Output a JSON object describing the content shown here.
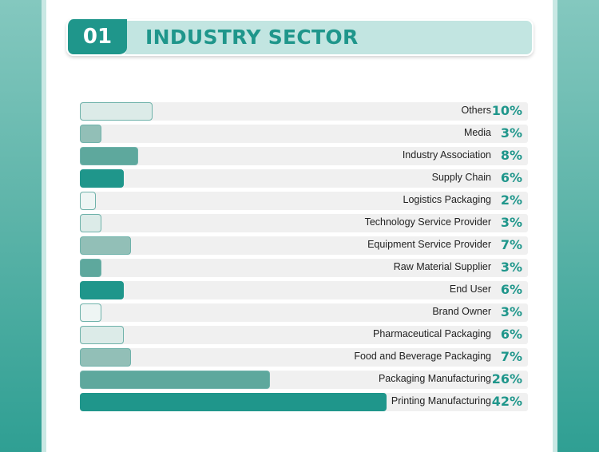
{
  "header": {
    "number": "01",
    "title": "INDUSTRY SECTOR"
  },
  "colors": {
    "accent": "#1f968b",
    "header_bg": "#c2e5e1",
    "track": "#f0f0f0",
    "palette": [
      "#dcebe8",
      "#92bfb7",
      "#5ea89d",
      "#1f968b",
      "#eef5f4"
    ]
  },
  "chart_data": {
    "type": "bar",
    "orientation": "horizontal",
    "title": "INDUSTRY SECTOR",
    "xlabel": "",
    "ylabel": "",
    "unit": "%",
    "xlim": [
      0,
      50
    ],
    "grid": false,
    "categories": [
      "Others",
      "Media",
      "Industry Association",
      "Supply Chain",
      "Logistics Packaging",
      "Technology Service Provider",
      "Equipment Service Provider",
      "Raw Material Supplier",
      "End User",
      "Brand Owner",
      "Pharmaceutical Packaging",
      "Food and Beverage Packaging",
      "Packaging Manufacturing",
      "Printing Manufacturing"
    ],
    "values": [
      10,
      3,
      8,
      6,
      2,
      3,
      7,
      3,
      6,
      3,
      6,
      7,
      26,
      42
    ],
    "labels": [
      "10%",
      "3%",
      "8%",
      "6%",
      "2%",
      "3%",
      "7%",
      "3%",
      "6%",
      "3%",
      "6%",
      "7%",
      "26%",
      "42%"
    ],
    "bar_colors": [
      "#dcebe8",
      "#92bfb7",
      "#5ea89d",
      "#1f968b",
      "#eef5f4",
      "#dcebe8",
      "#92bfb7",
      "#5ea89d",
      "#1f968b",
      "#eef5f4",
      "#dcebe8",
      "#92bfb7",
      "#5ea89d",
      "#1f968b"
    ]
  }
}
